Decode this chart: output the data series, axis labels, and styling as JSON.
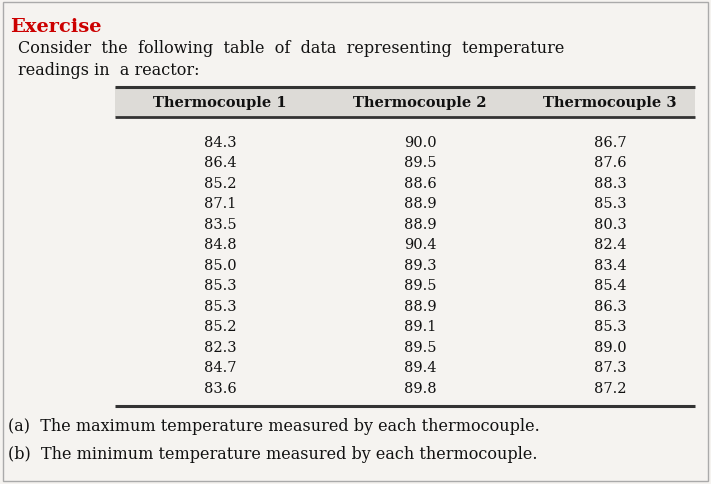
{
  "title": "Exercise",
  "intro_line1": "Consider  the  following  table  of  data  representing  temperature",
  "intro_line2": "readings in  a reactor:",
  "headers": [
    "Thermocouple 1",
    "Thermocouple 2",
    "Thermocouple 3"
  ],
  "col1": [
    84.3,
    86.4,
    85.2,
    87.1,
    83.5,
    84.8,
    85.0,
    85.3,
    85.3,
    85.2,
    82.3,
    84.7,
    83.6
  ],
  "col2": [
    90.0,
    89.5,
    88.6,
    88.9,
    88.9,
    90.4,
    89.3,
    89.5,
    88.9,
    89.1,
    89.5,
    89.4,
    89.8
  ],
  "col3": [
    86.7,
    87.6,
    88.3,
    85.3,
    80.3,
    82.4,
    83.4,
    85.4,
    86.3,
    85.3,
    89.0,
    87.3,
    87.2
  ],
  "footer_a": "(a)  The maximum temperature measured by each thermocouple.",
  "footer_b": "(b)  The minimum temperature measured by each thermocouple.",
  "bg_color": "#f5f3f0",
  "header_bg": "#dddbd7",
  "title_color": "#cc0000",
  "text_color": "#111111",
  "line_color": "#333333"
}
